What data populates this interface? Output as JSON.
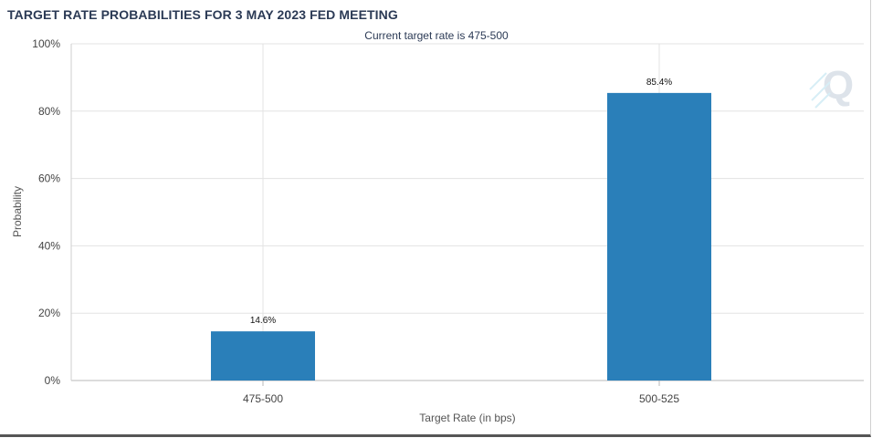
{
  "title": "TARGET RATE PROBABILITIES FOR 3 MAY 2023 FED MEETING",
  "colors": {
    "bar": "#2a7fb9",
    "title": "#2b3a55",
    "grid": "#e3e3e3"
  },
  "chart_data": {
    "type": "bar",
    "title": "TARGET RATE PROBABILITIES FOR 3 MAY 2023 FED MEETING",
    "subtitle": "Current target rate is 475-500",
    "categories": [
      "475-500",
      "500-525"
    ],
    "values": [
      14.6,
      85.4
    ],
    "data_labels": [
      "14.6%",
      "85.4%"
    ],
    "xlabel": "Target Rate (in bps)",
    "ylabel": "Probability",
    "ylim": [
      0,
      100
    ],
    "yticks": [
      0,
      20,
      40,
      60,
      80,
      100
    ],
    "ytick_labels": [
      "0%",
      "20%",
      "40%",
      "60%",
      "80%",
      "100%"
    ],
    "grid": true,
    "legend": "none"
  }
}
